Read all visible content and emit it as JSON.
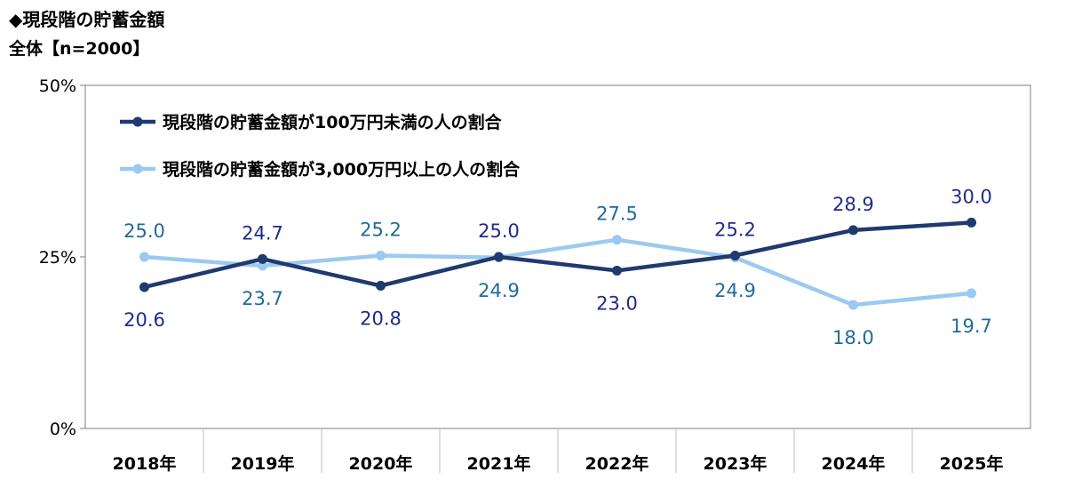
{
  "header": {
    "title": "◆現段階の貯蓄金額",
    "subtitle": "全体【n=2000】"
  },
  "chart_data": {
    "type": "line",
    "categories": [
      "2018年",
      "2019年",
      "2020年",
      "2021年",
      "2022年",
      "2023年",
      "2024年",
      "2025年"
    ],
    "series": [
      {
        "name": "現段階の貯蓄金額が100万円未満の人の割合",
        "values": [
          20.6,
          24.7,
          20.8,
          25.0,
          23.0,
          25.2,
          28.9,
          30.0
        ],
        "labels": [
          "20.6",
          "24.7",
          "20.8",
          "25.0",
          "23.0",
          "25.2",
          "28.9",
          "30.0"
        ],
        "color": "#1f3a6e",
        "label_color": "#1f2b8a"
      },
      {
        "name": "現段階の貯蓄金額が3,000万円以上の人の割合",
        "values": [
          25.0,
          23.7,
          25.2,
          24.9,
          27.5,
          24.9,
          18.0,
          19.7
        ],
        "labels": [
          "25.0",
          "23.7",
          "25.2",
          "24.9",
          "27.5",
          "24.9",
          "18.0",
          "19.7"
        ],
        "color": "#9cc9f0",
        "label_color": "#1e6b9a"
      }
    ],
    "ylim": [
      0,
      50
    ],
    "yticks": [
      "0%",
      "25%",
      "50%"
    ],
    "ytick_values": [
      0,
      25,
      50
    ],
    "legend_position": "top-left inside plot",
    "grid": false
  }
}
